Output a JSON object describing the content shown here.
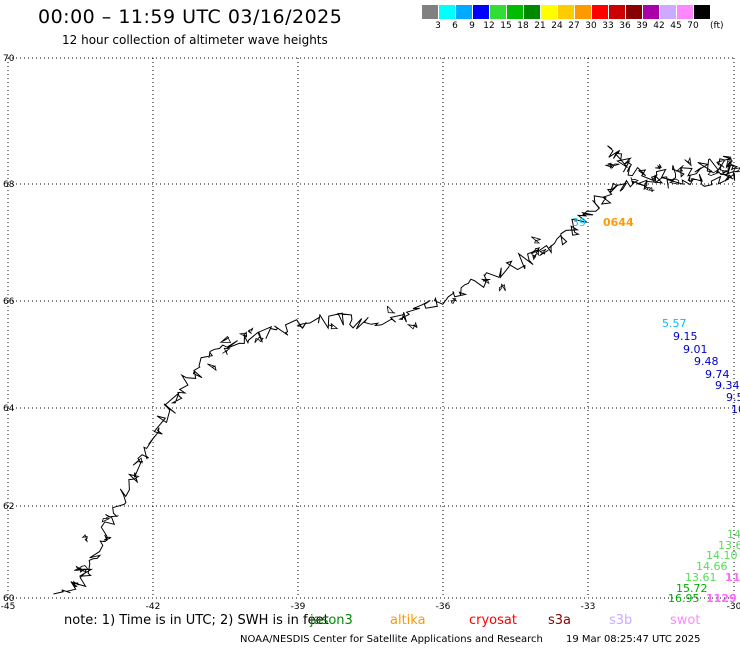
{
  "header": {
    "title": "00:00 – 11:59 UTC 03/16/2025",
    "subtitle": "12 hour collection of altimeter wave heights"
  },
  "legend": {
    "unit": "(ft)",
    "labels": [
      "3",
      "6",
      "9",
      "12",
      "15",
      "18",
      "21",
      "24",
      "27",
      "30",
      "33",
      "36",
      "39",
      "42",
      "45",
      "70"
    ],
    "colors": [
      "#808080",
      "#00ffff",
      "#00aaff",
      "#0000ff",
      "#33dd33",
      "#00bb00",
      "#008800",
      "#ffff00",
      "#ffcc00",
      "#ff9900",
      "#ff0000",
      "#cc0000",
      "#880000",
      "#aa00aa",
      "#ccaaff",
      "#ff88ff",
      "#000000"
    ]
  },
  "map": {
    "lat_labels": [
      "70",
      "68",
      "66",
      "64",
      "62",
      "60"
    ],
    "lon_labels": [
      "-45",
      "-42",
      "-39",
      "-36",
      "-33",
      "-30"
    ]
  },
  "observations": [
    {
      "text": "39",
      "color": "#00ccff"
    },
    {
      "text": "0644",
      "color": "#ff9900"
    },
    {
      "text": "5.57",
      "color": "#00bbff"
    },
    {
      "text": "9.15",
      "color": "#0000cc"
    },
    {
      "text": "9.01",
      "color": "#0000cc"
    },
    {
      "text": "9.48",
      "color": "#0000cc"
    },
    {
      "text": "9.74",
      "color": "#0000cc"
    },
    {
      "text": "9.34",
      "color": "#0000cc"
    },
    {
      "text": "9.5",
      "color": "#0000cc"
    },
    {
      "text": "10",
      "color": "#0000cc"
    },
    {
      "text": "14",
      "color": "#55dd55"
    },
    {
      "text": "13.6",
      "color": "#55dd55"
    },
    {
      "text": "14.10",
      "color": "#55dd55"
    },
    {
      "text": "14.66",
      "color": "#55dd55"
    },
    {
      "text": "13.61",
      "color": "#55dd55"
    },
    {
      "text": "15.72",
      "color": "#00aa00"
    },
    {
      "text": "16.95",
      "color": "#00aa00"
    },
    {
      "text": "11",
      "color": "#ff66ff"
    },
    {
      "text": "1129",
      "color": "#ff66ff"
    }
  ],
  "footer": {
    "notes": "note: 1) Time is in UTC; 2) SWH is in feet",
    "satellites": [
      {
        "name": "jason3",
        "color": "#008800"
      },
      {
        "name": "altika",
        "color": "#ff9900"
      },
      {
        "name": "cryosat",
        "color": "#ff0000"
      },
      {
        "name": "s3a",
        "color": "#880000"
      },
      {
        "name": "s3b",
        "color": "#ccaaff"
      },
      {
        "name": "swot",
        "color": "#ff88ff"
      }
    ],
    "credit": "NOAA/NESDIS Center for Satellite Applications and Research",
    "timestamp": "19 Mar 08:25:47 UTC 2025"
  }
}
